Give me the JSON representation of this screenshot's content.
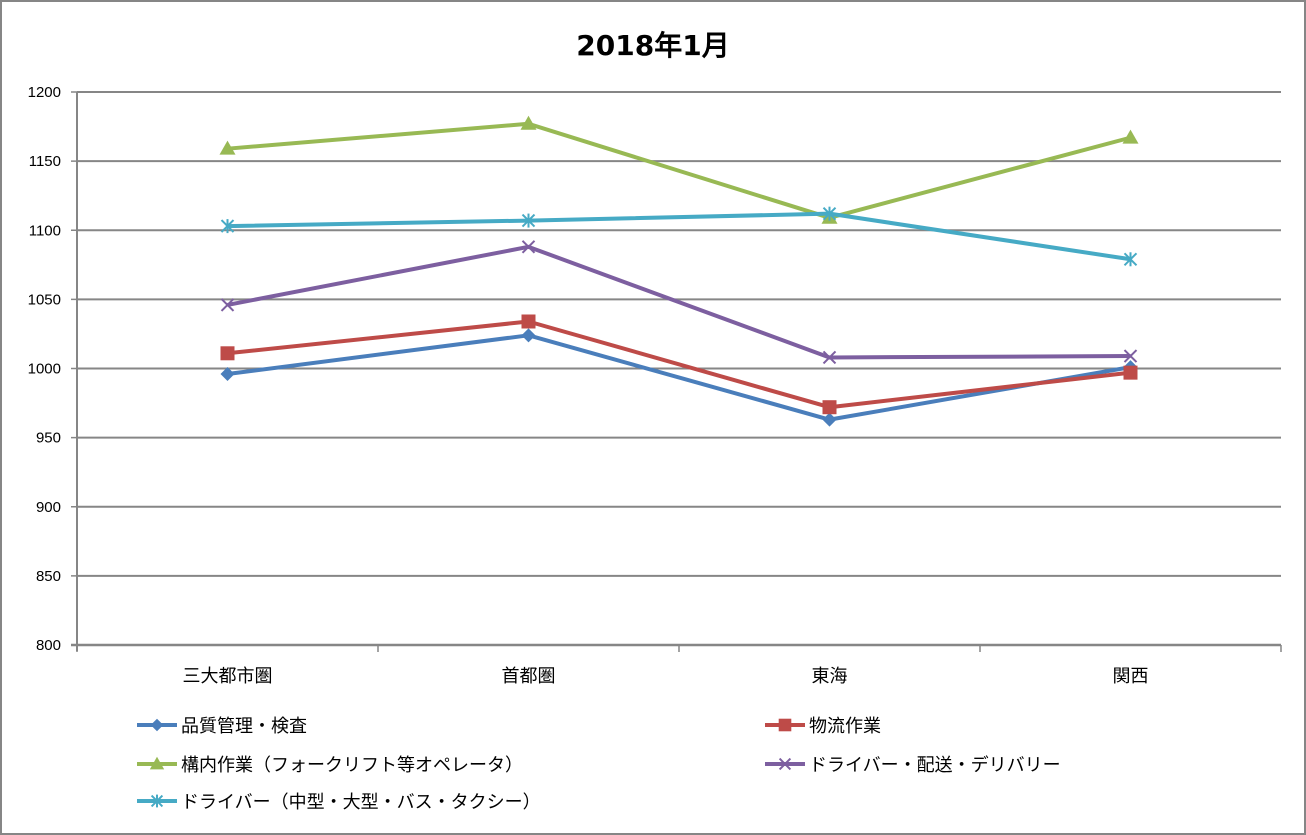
{
  "chart_data": {
    "type": "line",
    "title": "2018年1月",
    "xlabel": "",
    "ylabel": "",
    "categories": [
      "三大都市圏",
      "首都圏",
      "東海",
      "関西"
    ],
    "ylim": [
      800,
      1200
    ],
    "yticks": [
      800,
      850,
      900,
      950,
      1000,
      1050,
      1100,
      1150,
      1200
    ],
    "ytick_labels": [
      "800",
      "850",
      "900",
      "950",
      "1000",
      "1050",
      "1100",
      "1150",
      "1200"
    ],
    "grid": true,
    "legend_position": "bottom",
    "series": [
      {
        "name": "品質管理・検査",
        "color": "#4a7ebb",
        "marker": "diamond",
        "values": [
          996,
          1024,
          963,
          1001
        ]
      },
      {
        "name": "物流作業",
        "color": "#be4b48",
        "marker": "square",
        "values": [
          1011,
          1034,
          972,
          997
        ]
      },
      {
        "name": "構内作業（フォークリフト等オペレータ）",
        "color": "#98b954",
        "marker": "triangle",
        "values": [
          1159,
          1177,
          1109,
          1167
        ]
      },
      {
        "name": "ドライバー・配送・デリバリー",
        "color": "#7d5fa0",
        "marker": "x",
        "values": [
          1046,
          1088,
          1008,
          1009
        ]
      },
      {
        "name": "ドライバー（中型・大型・バス・タクシー）",
        "color": "#46aac5",
        "marker": "star",
        "values": [
          1103,
          1107,
          1112,
          1079
        ]
      }
    ]
  }
}
